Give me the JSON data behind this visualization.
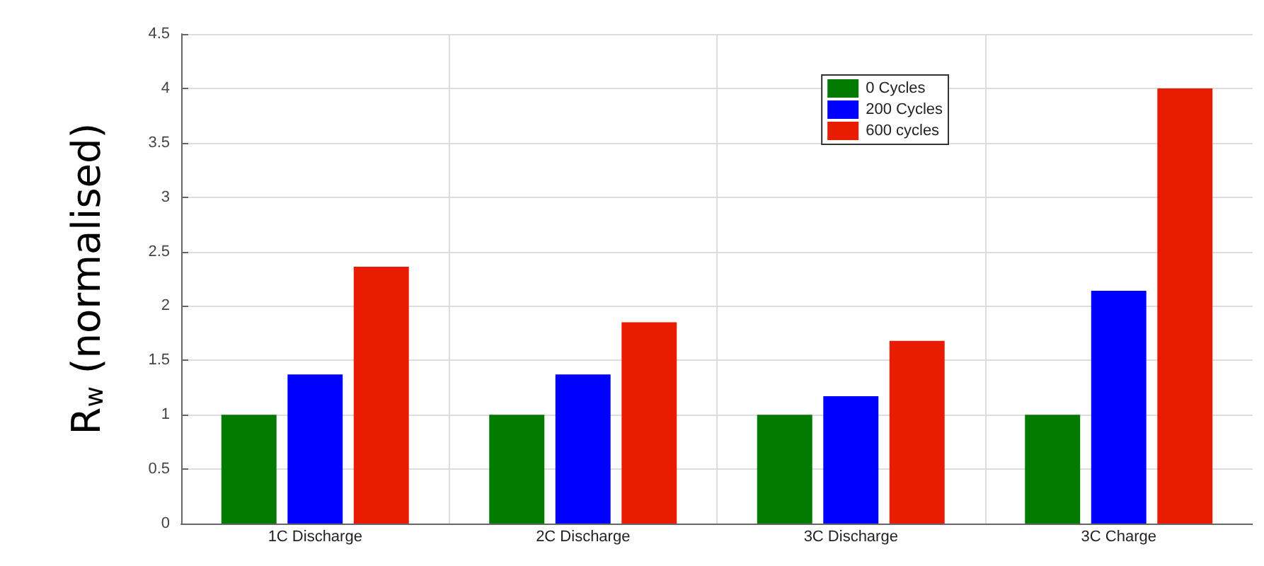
{
  "chart_data": {
    "type": "bar",
    "ylabel": "R$_{w}$ (normalised)",
    "categories": [
      "1C Discharge",
      "2C Discharge",
      "3C Discharge",
      "3C Charge"
    ],
    "series": [
      {
        "name": "0 Cycles",
        "color": "#007a00",
        "values": [
          1,
          1,
          1,
          1
        ]
      },
      {
        "name": "200 Cycles",
        "color": "#0000ff",
        "values": [
          1.37,
          1.37,
          1.17,
          2.14
        ]
      },
      {
        "name": "600 cycles",
        "color": "#e81c00",
        "values": [
          2.36,
          1.85,
          1.68,
          4.0
        ]
      }
    ],
    "ylim": [
      0,
      4.5
    ],
    "yticks": [
      0,
      0.5,
      1,
      1.5,
      2,
      2.5,
      3,
      3.5,
      4,
      4.5
    ],
    "grid": true,
    "legend": "top right"
  }
}
